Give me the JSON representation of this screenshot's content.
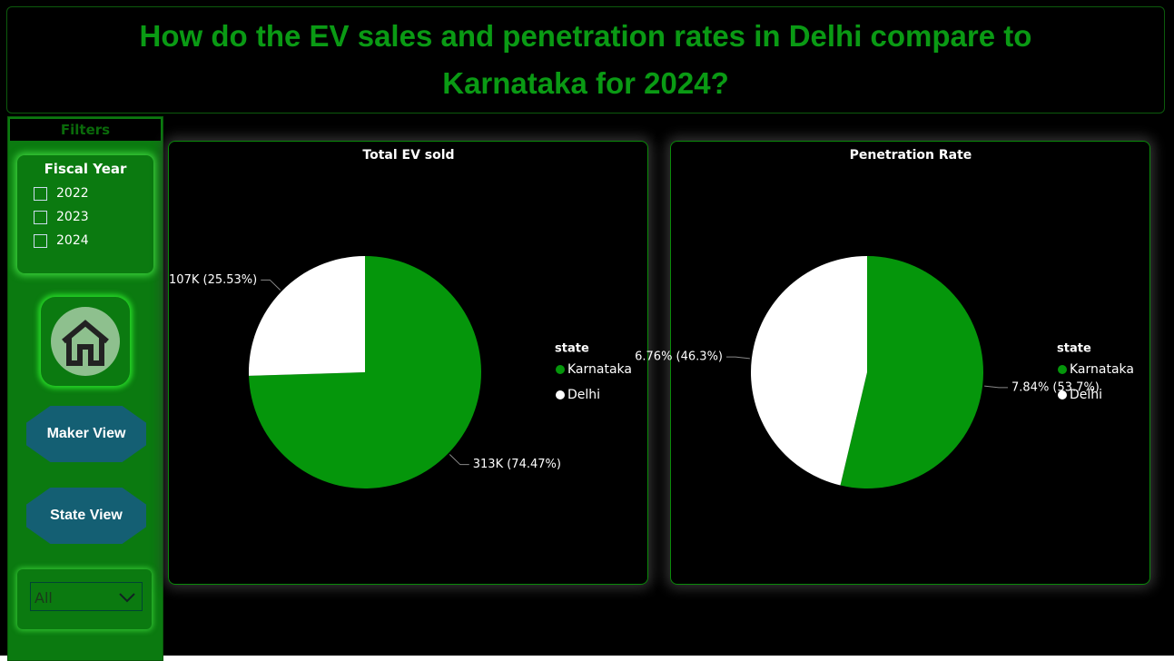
{
  "header": {
    "title": "How do the EV sales and penetration rates in Delhi compare to Karnataka for 2024?"
  },
  "sidebar": {
    "label": "Filters",
    "fiscal_year": {
      "title": "Fiscal Year",
      "options": [
        "2022",
        "2023",
        "2024"
      ]
    },
    "buttons": [
      "Maker View",
      "State View"
    ],
    "dropdown": "All"
  },
  "chart_data": [
    {
      "type": "pie",
      "title": "Total EV sold",
      "legend_title": "state",
      "categories": [
        "Karnataka",
        "Delhi"
      ],
      "values": [
        313000,
        107000
      ],
      "value_labels": [
        "313K (74.47%)",
        "107K (25.53%)"
      ],
      "colors": [
        "#05960b",
        "#ffffff"
      ],
      "legend": "right"
    },
    {
      "type": "pie",
      "title": "Penetration Rate",
      "legend_title": "state",
      "categories": [
        "Karnataka",
        "Delhi"
      ],
      "values": [
        7.84,
        6.76
      ],
      "value_labels": [
        "7.84% (53.7%)",
        "6.76% (46.3%)"
      ],
      "colors": [
        "#05960b",
        "#ffffff"
      ],
      "legend": "right"
    }
  ]
}
